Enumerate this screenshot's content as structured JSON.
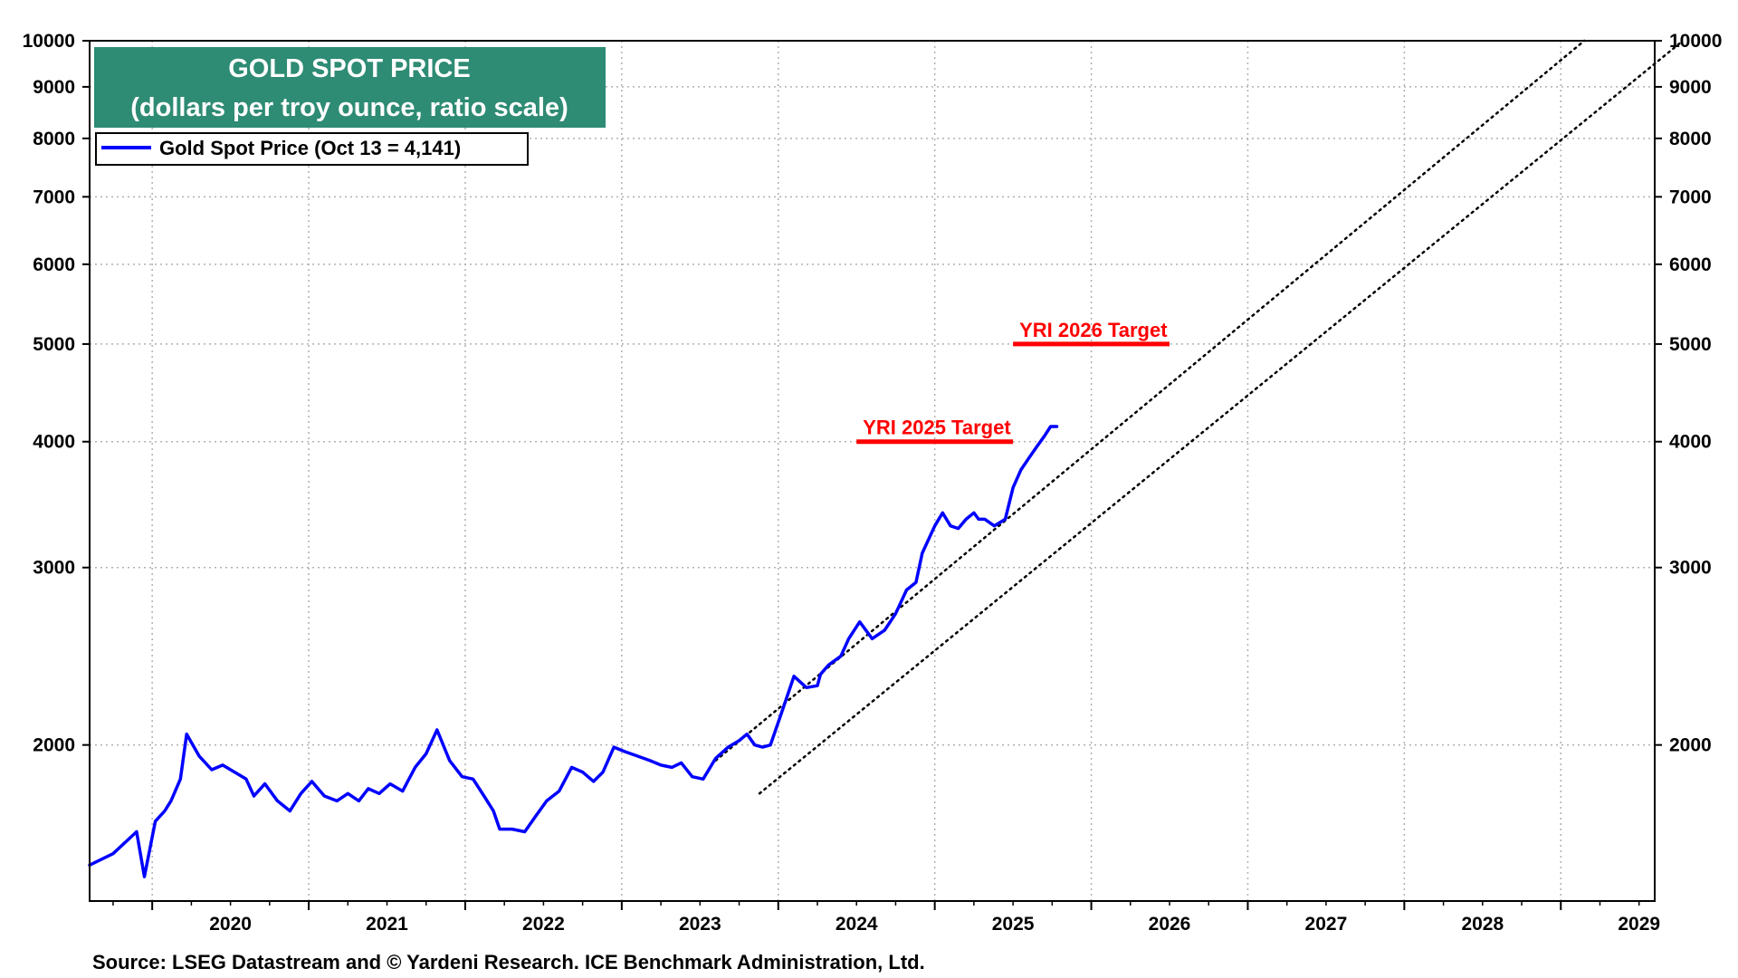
{
  "colors": {
    "series": "#0000ff",
    "target": "#ff0000",
    "title_bg": "#2e8b74",
    "title_text": "#ffffff",
    "grid": "#b0b0b0",
    "channel": "#000000"
  },
  "chart_data": {
    "type": "line",
    "title": "GOLD SPOT PRICE",
    "subtitle": "(dollars per troy ounce, ratio scale)",
    "y_scale": "log",
    "ylim": [
      1400,
      10000
    ],
    "y_ticks": [
      2000,
      3000,
      4000,
      5000,
      6000,
      7000,
      8000,
      9000,
      10000
    ],
    "y_tick_labels": [
      "2000",
      "3000",
      "4000",
      "5000",
      "6000",
      "7000",
      "8000",
      "9000",
      "10000"
    ],
    "xlim": [
      2019.6,
      2029.6
    ],
    "x_tick_labels": [
      {
        "label": "2020",
        "x": 2020.5
      },
      {
        "label": "2021",
        "x": 2021.5
      },
      {
        "label": "2022",
        "x": 2022.5
      },
      {
        "label": "2023",
        "x": 2023.5
      },
      {
        "label": "2024",
        "x": 2024.5
      },
      {
        "label": "2025",
        "x": 2025.5
      },
      {
        "label": "2026",
        "x": 2026.5
      },
      {
        "label": "2027",
        "x": 2027.5
      },
      {
        "label": "2028",
        "x": 2028.5
      },
      {
        "label": "2029",
        "x": 2029.5
      }
    ],
    "legend": {
      "placement": "top-left",
      "entries": [
        "Gold Spot Price (Oct 13 = 4,141)"
      ]
    },
    "series": [
      {
        "name": "Gold Spot Price (Oct 13 = 4,141)",
        "x": [
          2019.6,
          2019.75,
          2019.9,
          2019.95,
          2020.02,
          2020.08,
          2020.12,
          2020.18,
          2020.22,
          2020.3,
          2020.38,
          2020.45,
          2020.55,
          2020.6,
          2020.65,
          2020.72,
          2020.8,
          2020.88,
          2020.95,
          2021.02,
          2021.1,
          2021.18,
          2021.25,
          2021.32,
          2021.38,
          2021.45,
          2021.52,
          2021.6,
          2021.68,
          2021.75,
          2021.82,
          2021.9,
          2021.98,
          2022.05,
          2022.12,
          2022.18,
          2022.22,
          2022.3,
          2022.38,
          2022.45,
          2022.52,
          2022.6,
          2022.68,
          2022.75,
          2022.82,
          2022.88,
          2022.95,
          2023.02,
          2023.1,
          2023.18,
          2023.25,
          2023.32,
          2023.38,
          2023.45,
          2023.52,
          2023.6,
          2023.68,
          2023.75,
          2023.8,
          2023.85,
          2023.9,
          2023.95,
          2024.02,
          2024.1,
          2024.18,
          2024.25,
          2024.27,
          2024.32,
          2024.4,
          2024.45,
          2024.52,
          2024.6,
          2024.68,
          2024.75,
          2024.82,
          2024.88,
          2024.92,
          2025.0,
          2025.05,
          2025.1,
          2025.15,
          2025.2,
          2025.25,
          2025.28,
          2025.32,
          2025.38,
          2025.45,
          2025.5,
          2025.55,
          2025.6,
          2025.65,
          2025.7,
          2025.74,
          2025.78
        ],
        "values": [
          1520,
          1560,
          1640,
          1480,
          1680,
          1720,
          1760,
          1850,
          2050,
          1950,
          1890,
          1910,
          1870,
          1850,
          1780,
          1830,
          1760,
          1720,
          1790,
          1840,
          1780,
          1760,
          1790,
          1760,
          1810,
          1790,
          1830,
          1800,
          1900,
          1960,
          2070,
          1930,
          1860,
          1850,
          1780,
          1720,
          1650,
          1650,
          1640,
          1700,
          1760,
          1800,
          1900,
          1880,
          1840,
          1880,
          1990,
          1970,
          1950,
          1930,
          1910,
          1900,
          1920,
          1860,
          1850,
          1940,
          1990,
          2020,
          2050,
          2000,
          1990,
          2000,
          2150,
          2340,
          2280,
          2290,
          2350,
          2400,
          2450,
          2550,
          2650,
          2550,
          2600,
          2700,
          2850,
          2900,
          3100,
          3300,
          3400,
          3300,
          3280,
          3350,
          3400,
          3350,
          3350,
          3300,
          3350,
          3600,
          3750,
          3850,
          3950,
          4050,
          4141,
          4141
        ]
      }
    ],
    "annotations": [
      {
        "text": "YRI 2025 Target",
        "y": 4000,
        "x_start": 2024.5,
        "x_end": 2025.5
      },
      {
        "text": "YRI 2026 Target",
        "y": 5000,
        "x_start": 2025.5,
        "x_end": 2026.5
      }
    ],
    "channel_lines": [
      {
        "from": [
          2023.6,
          1930
        ],
        "to": [
          2029.15,
          10000
        ]
      },
      {
        "from": [
          2023.88,
          1790
        ],
        "to": [
          2029.78,
          10000
        ]
      }
    ],
    "grid": true
  },
  "footer": {
    "source": "Source: LSEG Datastream and © Yardeni Research. ICE Benchmark Administration, Ltd."
  }
}
